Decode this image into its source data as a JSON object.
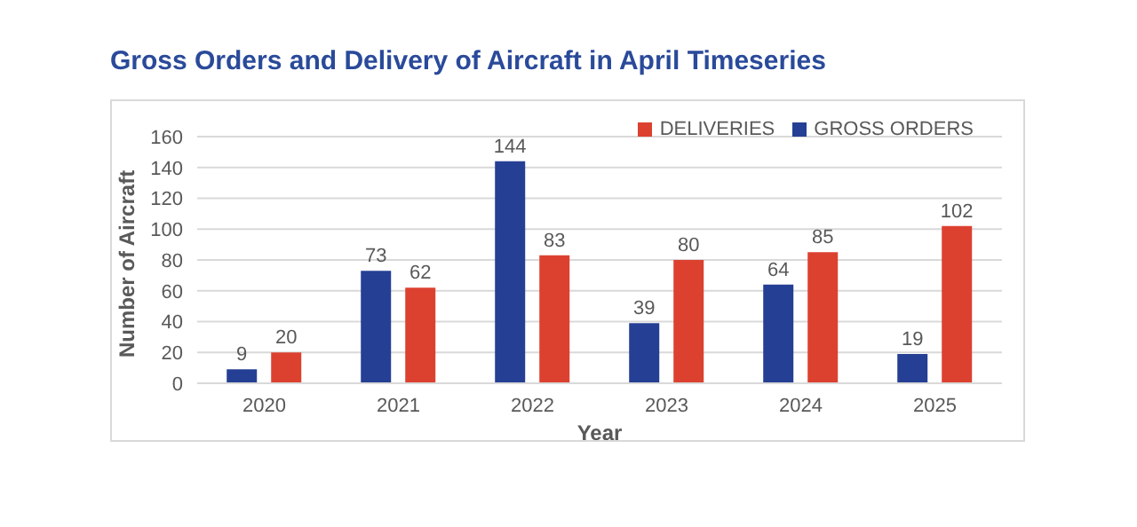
{
  "chart_data": {
    "type": "bar",
    "title": "Gross Orders and Delivery of Aircraft in April Timeseries",
    "xlabel": "Year",
    "ylabel": "Number of Aircraft",
    "categories": [
      "2020",
      "2021",
      "2022",
      "2023",
      "2024",
      "2025"
    ],
    "series": [
      {
        "name": "GROSS ORDERS",
        "color": "#253f94",
        "values": [
          9,
          73,
          144,
          39,
          64,
          19
        ]
      },
      {
        "name": "DELIVERIES",
        "color": "#dc4130",
        "values": [
          20,
          62,
          83,
          80,
          85,
          102
        ]
      }
    ],
    "ylim": [
      0,
      160
    ],
    "yticks": [
      0,
      20,
      40,
      60,
      80,
      100,
      120,
      140,
      160
    ],
    "grid": "y",
    "legend": "top right",
    "data_labels": true
  }
}
